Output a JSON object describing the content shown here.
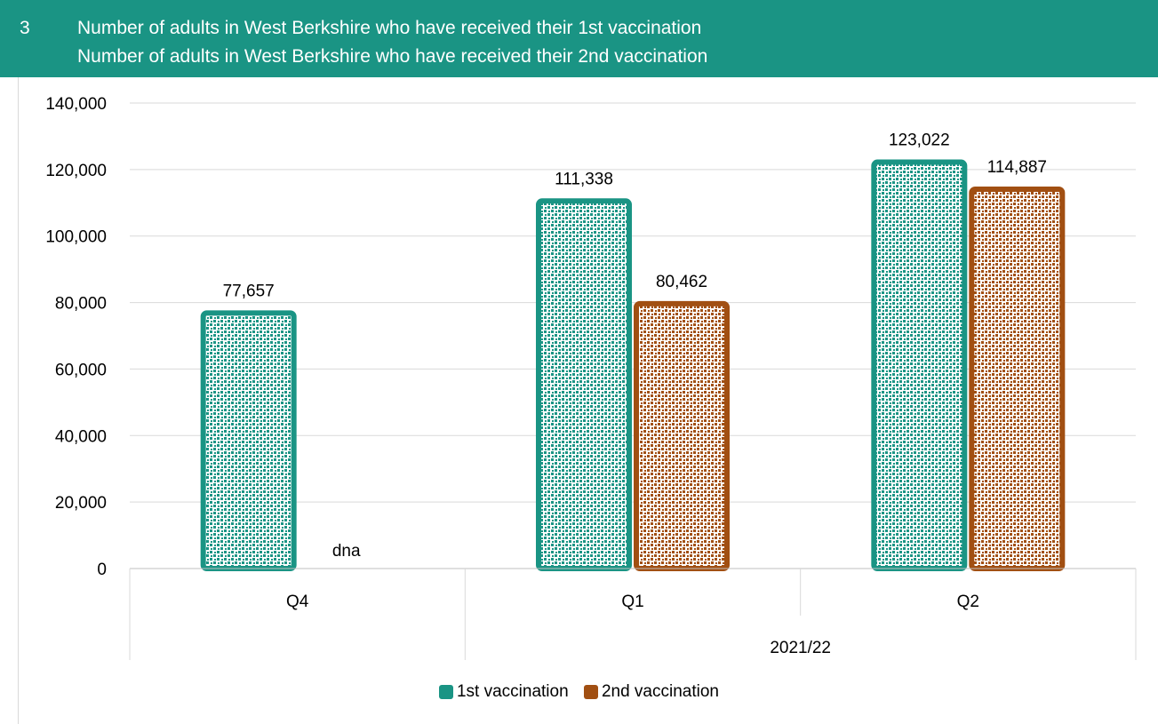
{
  "header": {
    "number": "3",
    "line1": "Number of adults in West Berkshire who have received their 1st vaccination",
    "line2": "Number of adults in West Berkshire who have received their 2nd vaccination"
  },
  "colors": {
    "header_bg": "#1a9484",
    "series1": "#1a9484",
    "series2": "#a14f12"
  },
  "chart_data": {
    "type": "bar",
    "categories": [
      "Q4",
      "Q1",
      "Q2"
    ],
    "group_label": "2021/22",
    "series": [
      {
        "name": "1st vaccination",
        "values": [
          77657,
          111338,
          123022
        ],
        "labels": [
          "77,657",
          "111,338",
          "123,022"
        ]
      },
      {
        "name": "2nd vaccination",
        "values": [
          null,
          80462,
          114887
        ],
        "labels": [
          "dna",
          "80,462",
          "114,887"
        ]
      }
    ],
    "yticks": [
      "0",
      "20,000",
      "40,000",
      "60,000",
      "80,000",
      "100,000",
      "120,000",
      "140,000"
    ],
    "ylim": [
      0,
      140000
    ],
    "grid": true,
    "legend": "bottom"
  }
}
